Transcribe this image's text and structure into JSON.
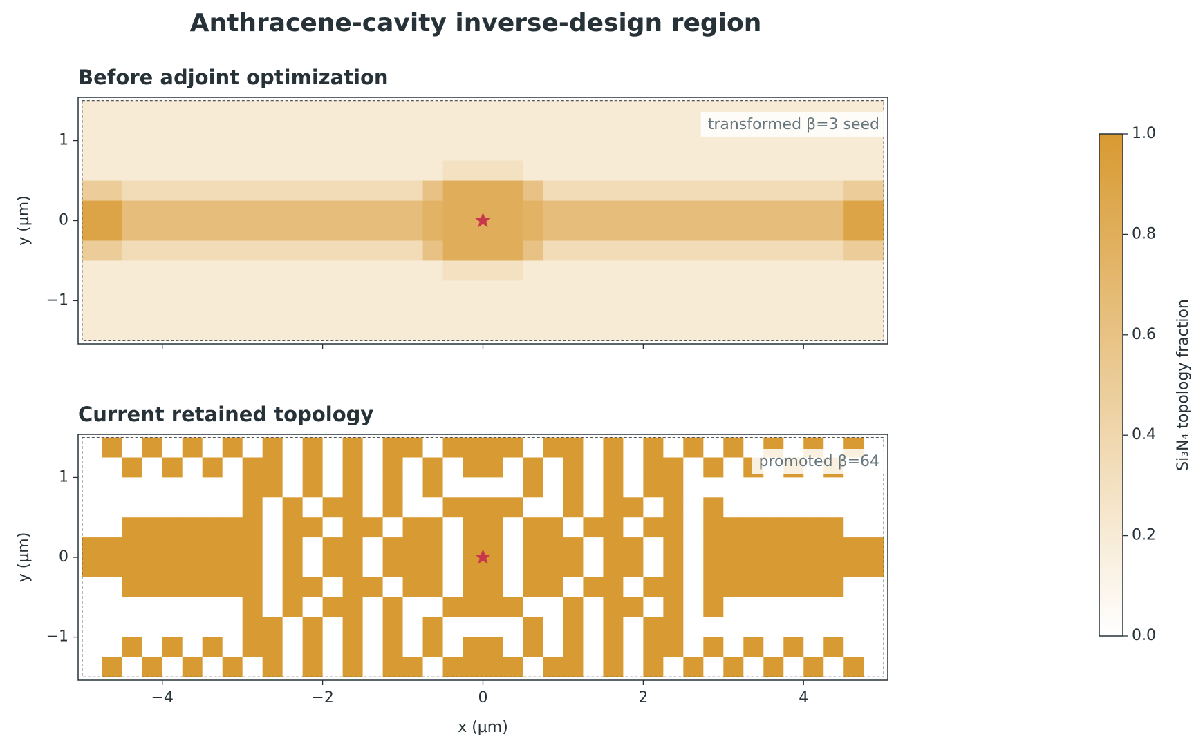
{
  "title": "Anthracene-cavity inverse-design region",
  "chart_data": [
    {
      "type": "heatmap",
      "title": "Before adjoint optimization",
      "annotation": "transformed β=3 seed",
      "ylabel": "y (µm)",
      "xlim": [
        -5.05,
        5.05
      ],
      "ylim": [
        -1.54,
        1.54
      ],
      "xticks": [
        -4,
        -2,
        0,
        2,
        4
      ],
      "xticklabels": false,
      "yticks": [
        {
          "value": -1,
          "label": "−1"
        },
        0,
        1
      ],
      "extent": [
        -5,
        5,
        -1.5,
        1.5
      ],
      "marker": {
        "x": 0,
        "y": 0,
        "color": "#c8374b"
      },
      "z": [
        [
          0.2,
          0.2,
          0.2,
          0.2,
          0.2,
          0.2,
          0.2,
          0.2,
          0.2,
          0.2,
          0.2,
          0.2,
          0.2,
          0.2,
          0.2,
          0.2,
          0.2,
          0.2,
          0.2,
          0.2,
          0.2,
          0.2,
          0.2,
          0.2,
          0.2,
          0.2,
          0.2,
          0.2,
          0.2,
          0.2,
          0.2,
          0.2,
          0.2,
          0.2,
          0.2,
          0.2,
          0.2,
          0.2,
          0.2,
          0.2
        ],
        [
          0.2,
          0.2,
          0.2,
          0.2,
          0.2,
          0.2,
          0.2,
          0.2,
          0.2,
          0.2,
          0.2,
          0.2,
          0.2,
          0.2,
          0.2,
          0.2,
          0.2,
          0.2,
          0.2,
          0.2,
          0.2,
          0.2,
          0.2,
          0.2,
          0.2,
          0.2,
          0.2,
          0.2,
          0.2,
          0.2,
          0.2,
          0.2,
          0.2,
          0.2,
          0.2,
          0.2,
          0.2,
          0.2,
          0.2,
          0.2
        ],
        [
          0.2,
          0.2,
          0.2,
          0.2,
          0.2,
          0.2,
          0.2,
          0.2,
          0.2,
          0.2,
          0.2,
          0.2,
          0.2,
          0.2,
          0.2,
          0.2,
          0.2,
          0.2,
          0.2,
          0.2,
          0.2,
          0.2,
          0.2,
          0.2,
          0.2,
          0.2,
          0.2,
          0.2,
          0.2,
          0.2,
          0.2,
          0.2,
          0.2,
          0.2,
          0.2,
          0.2,
          0.2,
          0.2,
          0.2,
          0.2
        ],
        [
          0.2,
          0.2,
          0.2,
          0.2,
          0.2,
          0.2,
          0.2,
          0.2,
          0.2,
          0.2,
          0.2,
          0.2,
          0.2,
          0.2,
          0.2,
          0.2,
          0.2,
          0.2,
          0.3,
          0.3,
          0.3,
          0.3,
          0.2,
          0.2,
          0.2,
          0.2,
          0.2,
          0.2,
          0.2,
          0.2,
          0.2,
          0.2,
          0.2,
          0.2,
          0.2,
          0.2,
          0.2,
          0.2,
          0.2,
          0.2
        ],
        [
          0.5,
          0.5,
          0.35,
          0.35,
          0.35,
          0.35,
          0.35,
          0.35,
          0.35,
          0.35,
          0.35,
          0.35,
          0.35,
          0.35,
          0.35,
          0.35,
          0.35,
          0.6,
          0.8,
          0.8,
          0.8,
          0.8,
          0.6,
          0.35,
          0.35,
          0.35,
          0.35,
          0.35,
          0.35,
          0.35,
          0.35,
          0.35,
          0.35,
          0.35,
          0.35,
          0.35,
          0.35,
          0.35,
          0.5,
          0.5
        ],
        [
          0.9,
          0.9,
          0.65,
          0.65,
          0.65,
          0.65,
          0.65,
          0.65,
          0.65,
          0.65,
          0.65,
          0.65,
          0.65,
          0.65,
          0.65,
          0.65,
          0.65,
          0.75,
          0.8,
          0.8,
          0.8,
          0.8,
          0.75,
          0.65,
          0.65,
          0.65,
          0.65,
          0.65,
          0.65,
          0.65,
          0.65,
          0.65,
          0.65,
          0.65,
          0.65,
          0.65,
          0.65,
          0.65,
          0.9,
          0.9
        ],
        [
          0.9,
          0.9,
          0.65,
          0.65,
          0.65,
          0.65,
          0.65,
          0.65,
          0.65,
          0.65,
          0.65,
          0.65,
          0.65,
          0.65,
          0.65,
          0.65,
          0.65,
          0.75,
          0.8,
          0.8,
          0.8,
          0.8,
          0.75,
          0.65,
          0.65,
          0.65,
          0.65,
          0.65,
          0.65,
          0.65,
          0.65,
          0.65,
          0.65,
          0.65,
          0.65,
          0.65,
          0.65,
          0.65,
          0.9,
          0.9
        ],
        [
          0.5,
          0.5,
          0.35,
          0.35,
          0.35,
          0.35,
          0.35,
          0.35,
          0.35,
          0.35,
          0.35,
          0.35,
          0.35,
          0.35,
          0.35,
          0.35,
          0.35,
          0.6,
          0.8,
          0.8,
          0.8,
          0.8,
          0.6,
          0.35,
          0.35,
          0.35,
          0.35,
          0.35,
          0.35,
          0.35,
          0.35,
          0.35,
          0.35,
          0.35,
          0.35,
          0.35,
          0.35,
          0.35,
          0.5,
          0.5
        ],
        [
          0.2,
          0.2,
          0.2,
          0.2,
          0.2,
          0.2,
          0.2,
          0.2,
          0.2,
          0.2,
          0.2,
          0.2,
          0.2,
          0.2,
          0.2,
          0.2,
          0.2,
          0.2,
          0.3,
          0.3,
          0.3,
          0.3,
          0.2,
          0.2,
          0.2,
          0.2,
          0.2,
          0.2,
          0.2,
          0.2,
          0.2,
          0.2,
          0.2,
          0.2,
          0.2,
          0.2,
          0.2,
          0.2,
          0.2,
          0.2
        ],
        [
          0.2,
          0.2,
          0.2,
          0.2,
          0.2,
          0.2,
          0.2,
          0.2,
          0.2,
          0.2,
          0.2,
          0.2,
          0.2,
          0.2,
          0.2,
          0.2,
          0.2,
          0.2,
          0.2,
          0.2,
          0.2,
          0.2,
          0.2,
          0.2,
          0.2,
          0.2,
          0.2,
          0.2,
          0.2,
          0.2,
          0.2,
          0.2,
          0.2,
          0.2,
          0.2,
          0.2,
          0.2,
          0.2,
          0.2,
          0.2
        ],
        [
          0.2,
          0.2,
          0.2,
          0.2,
          0.2,
          0.2,
          0.2,
          0.2,
          0.2,
          0.2,
          0.2,
          0.2,
          0.2,
          0.2,
          0.2,
          0.2,
          0.2,
          0.2,
          0.2,
          0.2,
          0.2,
          0.2,
          0.2,
          0.2,
          0.2,
          0.2,
          0.2,
          0.2,
          0.2,
          0.2,
          0.2,
          0.2,
          0.2,
          0.2,
          0.2,
          0.2,
          0.2,
          0.2,
          0.2,
          0.2
        ],
        [
          0.2,
          0.2,
          0.2,
          0.2,
          0.2,
          0.2,
          0.2,
          0.2,
          0.2,
          0.2,
          0.2,
          0.2,
          0.2,
          0.2,
          0.2,
          0.2,
          0.2,
          0.2,
          0.2,
          0.2,
          0.2,
          0.2,
          0.2,
          0.2,
          0.2,
          0.2,
          0.2,
          0.2,
          0.2,
          0.2,
          0.2,
          0.2,
          0.2,
          0.2,
          0.2,
          0.2,
          0.2,
          0.2,
          0.2,
          0.2
        ]
      ]
    },
    {
      "type": "heatmap",
      "title": "Current retained topology",
      "annotation": "promoted β=64",
      "ylabel": "y (µm)",
      "xlabel": "x (µm)",
      "xlim": [
        -5.05,
        5.05
      ],
      "ylim": [
        -1.54,
        1.54
      ],
      "xticks": [
        {
          "value": -4,
          "label": "−4"
        },
        {
          "value": -2,
          "label": "−2"
        },
        0,
        2,
        4
      ],
      "xticklabels": true,
      "yticks": [
        {
          "value": -1,
          "label": "−1"
        },
        0,
        1
      ],
      "extent": [
        -5,
        5,
        -1.5,
        1.5
      ],
      "marker": {
        "x": 0,
        "y": 0,
        "color": "#c8374b"
      },
      "z": [
        [
          0,
          1,
          0,
          1,
          0,
          1,
          0,
          1,
          0,
          1,
          0,
          1,
          0,
          1,
          0,
          1,
          1,
          0,
          1,
          1,
          1,
          1,
          0,
          1,
          1,
          0,
          1,
          0,
          1,
          0,
          1,
          0,
          1,
          0,
          1,
          0,
          1,
          0,
          1,
          0
        ],
        [
          0,
          0,
          1,
          0,
          1,
          0,
          1,
          0,
          1,
          1,
          0,
          1,
          0,
          1,
          0,
          1,
          0,
          1,
          0,
          1,
          1,
          0,
          1,
          0,
          1,
          0,
          1,
          0,
          1,
          1,
          0,
          1,
          0,
          1,
          0,
          1,
          0,
          1,
          0,
          0
        ],
        [
          0,
          0,
          0,
          0,
          0,
          0,
          0,
          0,
          1,
          1,
          0,
          1,
          0,
          1,
          0,
          1,
          0,
          1,
          0,
          0,
          0,
          0,
          1,
          0,
          1,
          0,
          1,
          0,
          1,
          1,
          0,
          0,
          0,
          0,
          0,
          0,
          0,
          0,
          0,
          0
        ],
        [
          0,
          0,
          0,
          0,
          0,
          0,
          0,
          0,
          1,
          0,
          1,
          0,
          1,
          1,
          0,
          1,
          0,
          0,
          1,
          1,
          1,
          1,
          0,
          0,
          1,
          0,
          1,
          1,
          0,
          1,
          0,
          1,
          0,
          0,
          0,
          0,
          0,
          0,
          0,
          0
        ],
        [
          0,
          0,
          1,
          1,
          1,
          1,
          1,
          1,
          1,
          0,
          1,
          1,
          0,
          1,
          1,
          0,
          1,
          1,
          0,
          1,
          1,
          0,
          1,
          1,
          0,
          1,
          1,
          0,
          1,
          1,
          0,
          1,
          1,
          1,
          1,
          1,
          1,
          1,
          0,
          0
        ],
        [
          1,
          1,
          1,
          1,
          1,
          1,
          1,
          1,
          1,
          0,
          1,
          0,
          1,
          1,
          0,
          1,
          1,
          1,
          0,
          1,
          1,
          0,
          1,
          1,
          1,
          0,
          1,
          1,
          0,
          1,
          0,
          1,
          1,
          1,
          1,
          1,
          1,
          1,
          1,
          1
        ],
        [
          1,
          1,
          1,
          1,
          1,
          1,
          1,
          1,
          1,
          0,
          1,
          0,
          1,
          1,
          0,
          1,
          1,
          1,
          0,
          1,
          1,
          0,
          1,
          1,
          1,
          0,
          1,
          1,
          0,
          1,
          0,
          1,
          1,
          1,
          1,
          1,
          1,
          1,
          1,
          1
        ],
        [
          0,
          0,
          1,
          1,
          1,
          1,
          1,
          1,
          1,
          0,
          1,
          1,
          0,
          1,
          1,
          0,
          1,
          1,
          0,
          1,
          1,
          0,
          1,
          1,
          0,
          1,
          1,
          0,
          1,
          1,
          0,
          1,
          1,
          1,
          1,
          1,
          1,
          1,
          0,
          0
        ],
        [
          0,
          0,
          0,
          0,
          0,
          0,
          0,
          0,
          1,
          0,
          1,
          0,
          1,
          1,
          0,
          1,
          0,
          0,
          1,
          1,
          1,
          1,
          0,
          0,
          1,
          0,
          1,
          1,
          0,
          1,
          0,
          1,
          0,
          0,
          0,
          0,
          0,
          0,
          0,
          0
        ],
        [
          0,
          0,
          0,
          0,
          0,
          0,
          0,
          0,
          1,
          1,
          0,
          1,
          0,
          1,
          0,
          1,
          0,
          1,
          0,
          0,
          0,
          0,
          1,
          0,
          1,
          0,
          1,
          0,
          1,
          1,
          0,
          0,
          0,
          0,
          0,
          0,
          0,
          0,
          0,
          0
        ],
        [
          0,
          0,
          1,
          0,
          1,
          0,
          1,
          0,
          1,
          1,
          0,
          1,
          0,
          1,
          0,
          1,
          0,
          1,
          0,
          1,
          1,
          0,
          1,
          0,
          1,
          0,
          1,
          0,
          1,
          1,
          0,
          1,
          0,
          1,
          0,
          1,
          0,
          1,
          0,
          0
        ],
        [
          0,
          1,
          0,
          1,
          0,
          1,
          0,
          1,
          0,
          1,
          0,
          1,
          0,
          1,
          0,
          1,
          1,
          0,
          1,
          1,
          1,
          1,
          0,
          1,
          1,
          0,
          1,
          0,
          1,
          0,
          1,
          0,
          1,
          0,
          1,
          0,
          1,
          0,
          1,
          0
        ]
      ]
    }
  ],
  "colorbar": {
    "label": "Si₃N₄ topology fraction",
    "cmap": [
      "#ffffff",
      "#d89a32"
    ],
    "lim": [
      0,
      1
    ],
    "ticks": [
      {
        "value": 0,
        "label": "0.0"
      },
      0.2,
      0.4,
      0.6,
      0.8,
      {
        "value": 1,
        "label": "1.0"
      }
    ]
  }
}
